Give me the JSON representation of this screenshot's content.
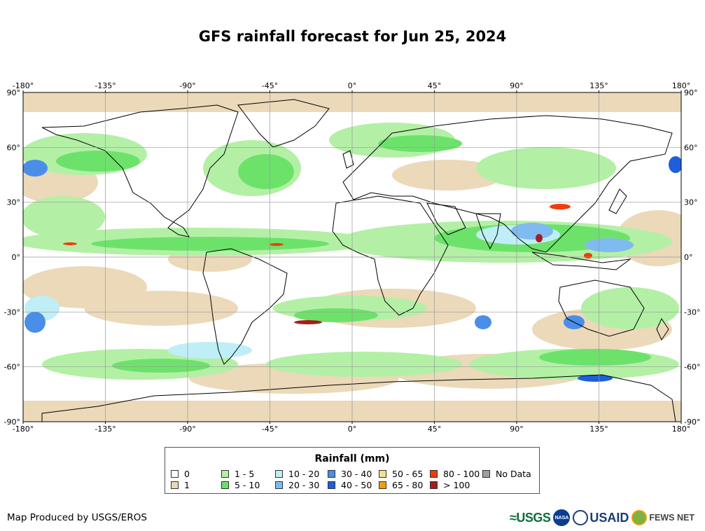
{
  "title": "GFS rainfall forecast for Jun 25, 2024",
  "map": {
    "lon_labels": [
      "-180°",
      "-135°",
      "-90°",
      "-45°",
      "0°",
      "45°",
      "90°",
      "135°",
      "180°"
    ],
    "lat_labels": [
      "90°",
      "60°",
      "30°",
      "0°",
      "-30°",
      "-60°",
      "-90°"
    ],
    "lon_range": [
      -180,
      180
    ],
    "lat_range": [
      -90,
      90
    ],
    "colors": {
      "water": "#ffffff",
      "grid": "#999999",
      "coast": "#000000"
    }
  },
  "legend": {
    "title": "Rainfall (mm)",
    "items": [
      {
        "label": "0",
        "color": "#ffffff"
      },
      {
        "label": "1",
        "color": "#ead7b6"
      },
      {
        "label": "1 - 5",
        "color": "#b3f0a6"
      },
      {
        "label": "5 - 10",
        "color": "#6de26b"
      },
      {
        "label": "10 - 20",
        "color": "#bfeef7"
      },
      {
        "label": "20 - 30",
        "color": "#7fbaf1"
      },
      {
        "label": "30 - 40",
        "color": "#4a8ee8"
      },
      {
        "label": "40 - 50",
        "color": "#1e5fdc"
      },
      {
        "label": "50 - 65",
        "color": "#f7e08c"
      },
      {
        "label": "65 - 80",
        "color": "#f39c12"
      },
      {
        "label": "80 - 100",
        "color": "#f23a0a"
      },
      {
        "label": "> 100",
        "color": "#a81c1c"
      },
      {
        "label": "No Data",
        "color": "#9e9e9e"
      }
    ]
  },
  "footer": {
    "credit": "Map Produced by USGS/EROS",
    "logos": {
      "usgs": "≈USGS",
      "nasa": "NASA",
      "usaid": "USAID",
      "fews": "FEWS NET"
    }
  }
}
